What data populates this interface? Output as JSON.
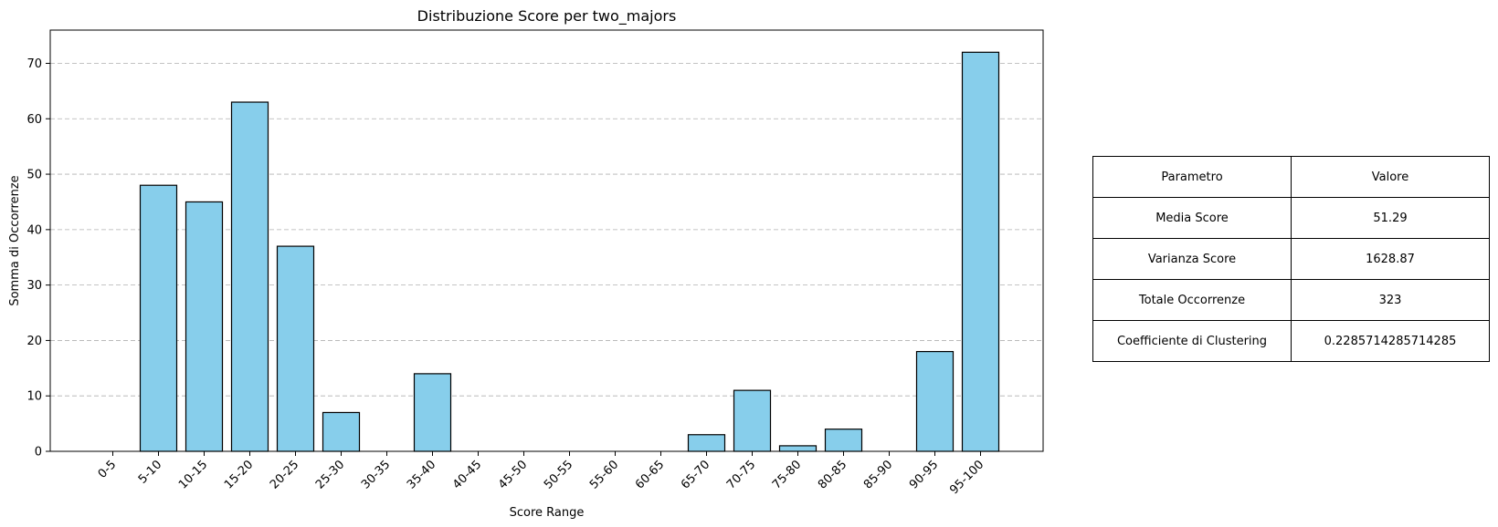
{
  "chart_data": {
    "type": "bar",
    "title": "Distribuzione Score per two_majors",
    "xlabel": "Score Range",
    "ylabel": "Somma di Occorrenze",
    "categories": [
      "0-5",
      "5-10",
      "10-15",
      "15-20",
      "20-25",
      "25-30",
      "30-35",
      "35-40",
      "40-45",
      "45-50",
      "50-55",
      "55-60",
      "60-65",
      "65-70",
      "70-75",
      "75-80",
      "80-85",
      "85-90",
      "90-95",
      "95-100"
    ],
    "values": [
      0,
      48,
      45,
      63,
      37,
      7,
      0,
      14,
      0,
      0,
      0,
      0,
      0,
      3,
      11,
      1,
      4,
      0,
      18,
      72
    ],
    "ylim": [
      0,
      76
    ],
    "yticks": [
      0,
      10,
      20,
      30,
      40,
      50,
      60,
      70
    ],
    "grid": "y-dashed",
    "bar_color": "#87ceeb",
    "edge_color": "#000000"
  },
  "table": {
    "header": [
      "Parametro",
      "Valore"
    ],
    "rows": [
      [
        "Media Score",
        "51.29"
      ],
      [
        "Varianza Score",
        "1628.87"
      ],
      [
        "Totale Occorrenze",
        "323"
      ],
      [
        "Coefficiente di Clustering",
        "0.2285714285714285"
      ]
    ]
  }
}
